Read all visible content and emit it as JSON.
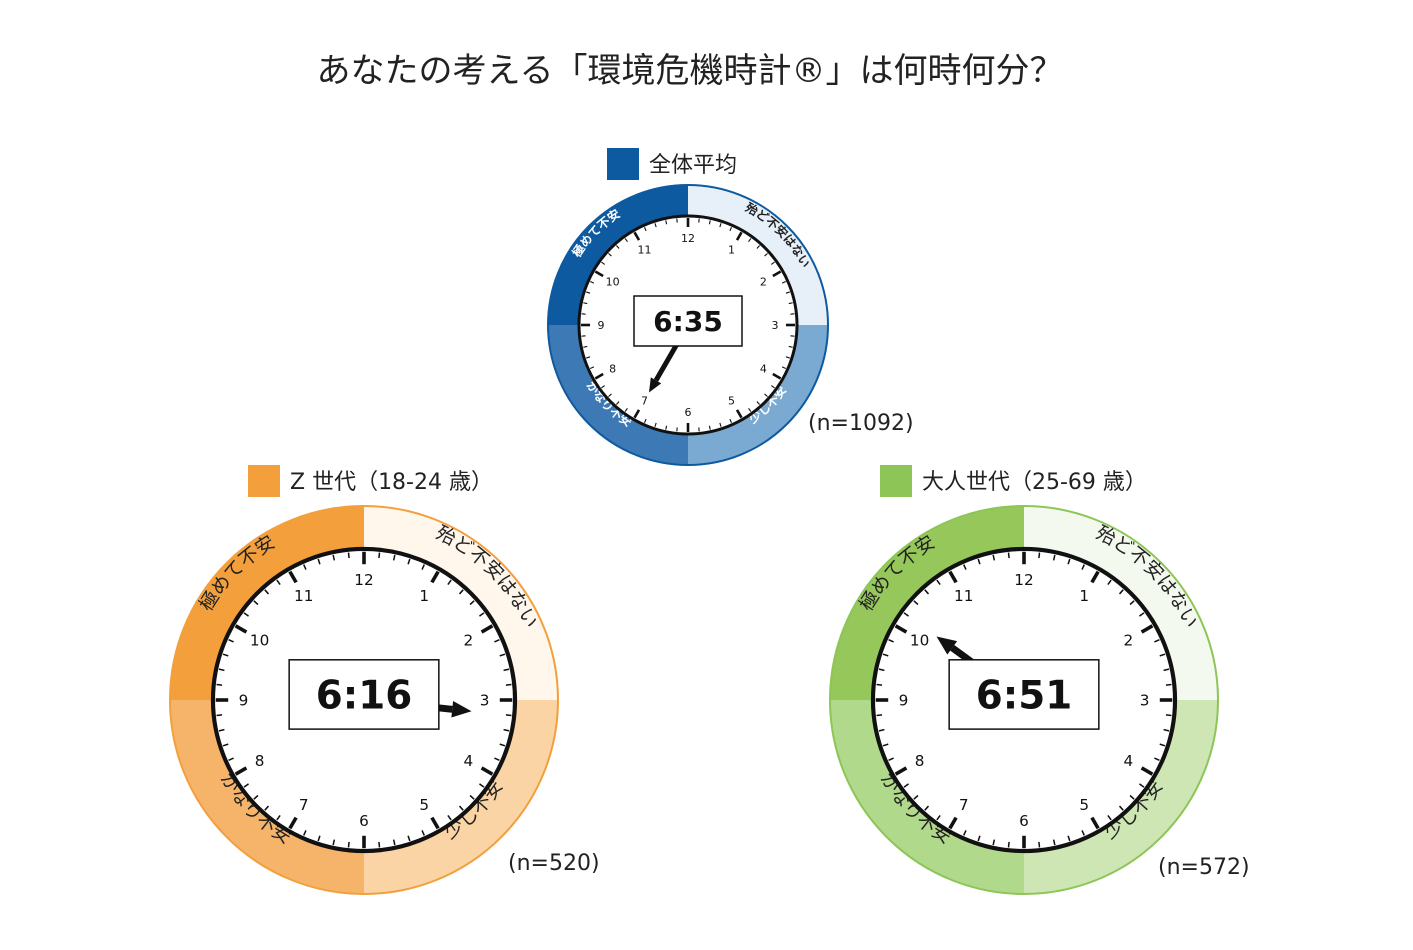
{
  "title": "あなたの考える「環境危機時計®」は何時何分？",
  "zone_labels": {
    "q1": "殆ど不安はない",
    "q2": "少し不安",
    "q3": "かなり不安",
    "q4": "極めて不安"
  },
  "chart_data": [
    {
      "type": "clock",
      "name": "全体平均",
      "time": "6:35",
      "hours": 6,
      "minutes": 35,
      "n": "(n=1092)",
      "colors": {
        "q1": "#e7f0f8",
        "q2": "#7aaad2",
        "q3": "#3d7ab5",
        "q4": "#0e5aa0",
        "legend": "#0e5aa0"
      }
    },
    {
      "type": "clock",
      "name": "Z 世代（18-24 歳）",
      "time": "6:16",
      "hours": 6,
      "minutes": 16,
      "n": "(n=520)",
      "colors": {
        "q1": "#fff6ec",
        "q2": "#fad4a4",
        "q3": "#f6b46b",
        "q4": "#f39f3c",
        "legend": "#f39f3c"
      }
    },
    {
      "type": "clock",
      "name": "大人世代（25-69 歳）",
      "time": "6:51",
      "hours": 6,
      "minutes": 51,
      "n": "(n=572)",
      "colors": {
        "q1": "#f3f9ee",
        "q2": "#cde6b4",
        "q3": "#b1d98c",
        "q4": "#96c75a",
        "legend": "#8dc556"
      }
    }
  ]
}
